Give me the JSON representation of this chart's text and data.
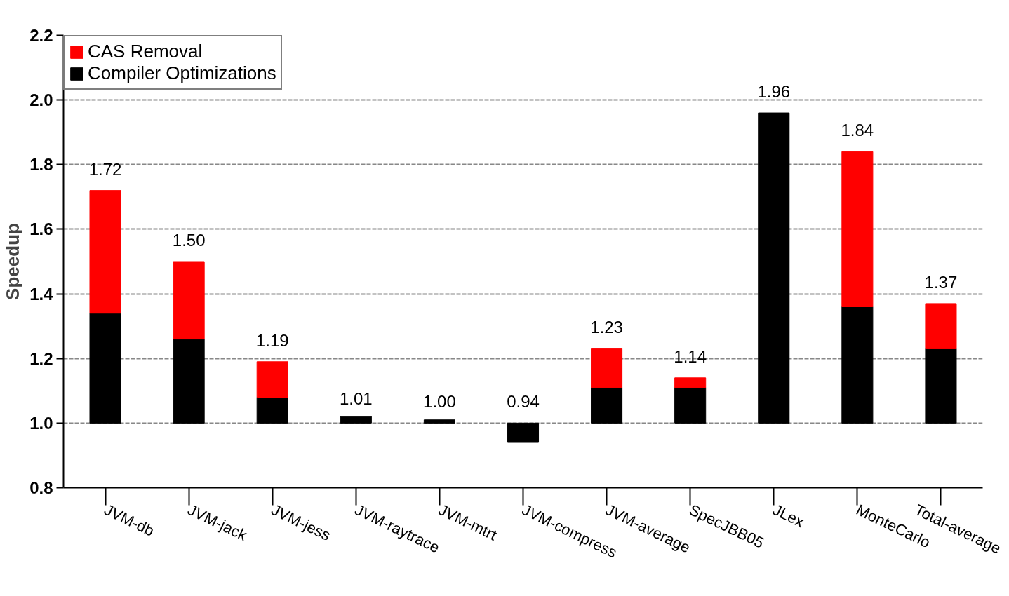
{
  "chart_data": {
    "type": "bar",
    "ylabel": "Speedup",
    "categories": [
      "JVM-db",
      "JVM-jack",
      "JVM-jess",
      "JVM-raytrace",
      "JVM-mtrt",
      "JVM-compress",
      "JVM-average",
      "SpecJBB05",
      "JLex",
      "MonteCarlo",
      "Total-average"
    ],
    "series": [
      {
        "name": "Compiler Optimizations",
        "color": "#000000",
        "base": [
          1.0,
          1.0,
          1.0,
          1.0,
          1.0,
          1.0,
          1.0,
          1.0,
          1.0,
          1.0,
          1.0
        ],
        "values": [
          0.34,
          0.26,
          0.08,
          0.02,
          0.01,
          -0.06,
          0.11,
          0.11,
          0.96,
          0.36,
          0.23
        ]
      },
      {
        "name": "CAS Removal",
        "color": "#ff0000",
        "base": [
          1.34,
          1.26,
          1.08,
          null,
          null,
          null,
          1.11,
          1.11,
          null,
          1.36,
          1.23
        ],
        "values": [
          0.38,
          0.24,
          0.11,
          null,
          null,
          null,
          0.12,
          0.03,
          null,
          0.48,
          0.14
        ]
      }
    ],
    "annotations": [
      {
        "text": "1.72",
        "x": "JVM-db",
        "y": 1.72
      },
      {
        "text": "1.50",
        "x": "JVM-jack",
        "y": 1.5
      },
      {
        "text": "1.19",
        "x": "JVM-jess",
        "y": 1.19
      },
      {
        "text": "1.01",
        "x": "JVM-raytrace",
        "y": 1.01
      },
      {
        "text": "1.00",
        "x": "JVM-mtrt",
        "y": 1.0
      },
      {
        "text": "0.94",
        "x": "JVM-compress",
        "y": 0.94
      },
      {
        "text": "1.23",
        "x": "JVM-average",
        "y": 1.23
      },
      {
        "text": "1.14",
        "x": "SpecJBB05",
        "y": 1.14
      },
      {
        "text": "1.96",
        "x": "JLex",
        "y": 1.96
      },
      {
        "text": "1.84",
        "x": "MonteCarlo",
        "y": 1.84
      },
      {
        "text": "1.37",
        "x": "Total-average",
        "y": 1.37
      }
    ],
    "ylim": [
      0.8,
      2.2
    ],
    "yticks": [
      {
        "value": 0.8,
        "label": "0.8"
      },
      {
        "value": 1,
        "label": "1.0"
      },
      {
        "value": 1.2,
        "label": "1.2"
      },
      {
        "value": 1.4,
        "label": "1.4"
      },
      {
        "value": 1.6,
        "label": "1.6"
      },
      {
        "value": 1.8,
        "label": "1.8"
      },
      {
        "value": 2,
        "label": "2.0"
      },
      {
        "value": 2.2,
        "label": "2.2"
      }
    ],
    "grid": "y",
    "legend": "top left"
  }
}
